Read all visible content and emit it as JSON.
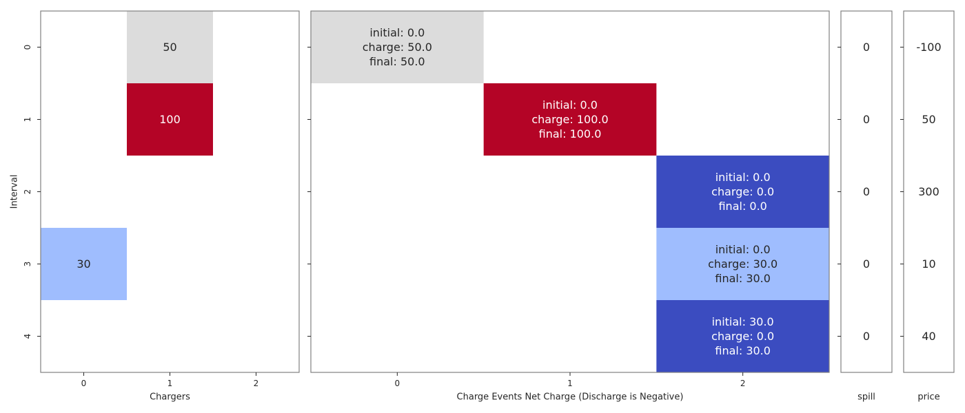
{
  "colors": {
    "zero": "#dcdcdc",
    "light_blue": "#9fbdfe",
    "dark_blue": "#3b4cc0",
    "red": "#b40426",
    "text_dark": "#262626",
    "text_light": "#ffffff"
  },
  "chart_data": [
    {
      "type": "heatmap",
      "id": "chargers",
      "xlabel": "Chargers",
      "ylabel": "Interval",
      "x_ticks": [
        "0",
        "1",
        "2"
      ],
      "y_ticks": [
        "0",
        "1",
        "2",
        "3",
        "4"
      ],
      "cells": [
        {
          "row": 0,
          "col": 1,
          "value": 50,
          "label": "50",
          "color": "zero",
          "text_color": "text_dark"
        },
        {
          "row": 1,
          "col": 1,
          "value": 100,
          "label": "100",
          "color": "red",
          "text_color": "text_light"
        },
        {
          "row": 3,
          "col": 0,
          "value": 30,
          "label": "30",
          "color": "light_blue",
          "text_color": "text_dark"
        }
      ]
    },
    {
      "type": "heatmap",
      "id": "charge-events",
      "xlabel": "Charge Events Net Charge (Discharge is Negative)",
      "ylabel": "",
      "x_ticks": [
        "0",
        "1",
        "2"
      ],
      "y_ticks": [
        "0",
        "1",
        "2",
        "3",
        "4"
      ],
      "cells": [
        {
          "row": 0,
          "col": 0,
          "value": 50.0,
          "lines": [
            "initial: 0.0",
            "charge: 50.0",
            "final: 50.0"
          ],
          "color": "zero",
          "text_color": "text_dark"
        },
        {
          "row": 1,
          "col": 1,
          "value": 100.0,
          "lines": [
            "initial: 0.0",
            "charge: 100.0",
            "final: 100.0"
          ],
          "color": "red",
          "text_color": "text_light"
        },
        {
          "row": 2,
          "col": 2,
          "value": 0.0,
          "lines": [
            "initial: 0.0",
            "charge: 0.0",
            "final: 0.0"
          ],
          "color": "dark_blue",
          "text_color": "text_light"
        },
        {
          "row": 3,
          "col": 2,
          "value": 30.0,
          "lines": [
            "initial: 0.0",
            "charge: 30.0",
            "final: 30.0"
          ],
          "color": "light_blue",
          "text_color": "text_dark"
        },
        {
          "row": 4,
          "col": 2,
          "value": 0.0,
          "lines": [
            "initial: 30.0",
            "charge: 0.0",
            "final: 30.0"
          ],
          "color": "dark_blue",
          "text_color": "text_light"
        }
      ]
    },
    {
      "type": "table",
      "id": "spill",
      "xlabel": "spill",
      "values": [
        "0",
        "0",
        "0",
        "0",
        "0"
      ]
    },
    {
      "type": "table",
      "id": "price",
      "xlabel": "price",
      "values": [
        "-100",
        "50",
        "300",
        "10",
        "40"
      ]
    }
  ]
}
